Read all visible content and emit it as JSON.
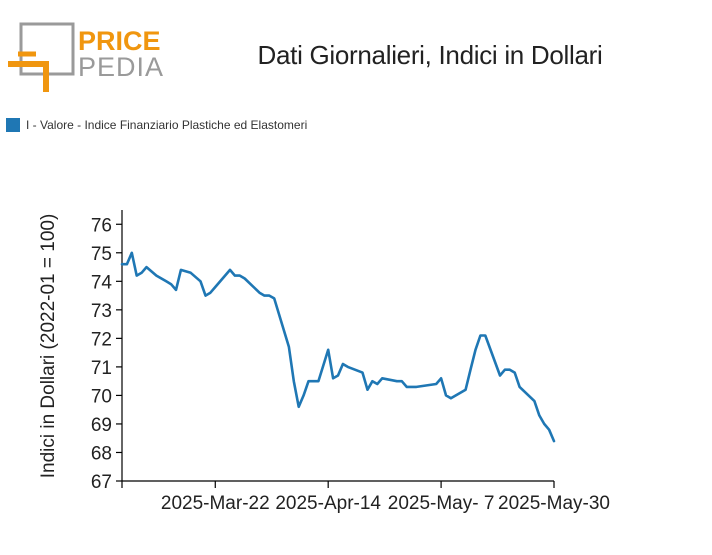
{
  "header": {
    "logo_top": "PRICE",
    "logo_bottom": "PEDIA",
    "title": "Dati Giornalieri, Indici in Dollari"
  },
  "colors": {
    "logo_orange": "#f0960f",
    "logo_gray": "#9a9a9a",
    "series": "#1f77b4"
  },
  "chart_data": {
    "type": "line",
    "ylabel": "Indici in Dollari (2022-01 = 100)",
    "xlabel": "",
    "ylim": [
      67,
      76.5
    ],
    "xlim": [
      "2025-03-03",
      "2025-05-30"
    ],
    "yticks": [
      67,
      68,
      69,
      70,
      71,
      72,
      73,
      74,
      75,
      76
    ],
    "xticks": [
      {
        "date": "2025-03-03",
        "label": ""
      },
      {
        "date": "2025-03-22",
        "label": "2025-Mar-22"
      },
      {
        "date": "2025-04-14",
        "label": "2025-Apr-14"
      },
      {
        "date": "2025-05-07",
        "label": "2025-May- 7"
      },
      {
        "date": "2025-05-30",
        "label": "2025-May-30"
      }
    ],
    "legend_position": "top-left",
    "series": [
      {
        "name": "I - Valore - Indice Finanziario Plastiche ed Elastomeri",
        "color": "#1f77b4",
        "x": [
          "2025-03-03",
          "2025-03-04",
          "2025-03-05",
          "2025-03-06",
          "2025-03-07",
          "2025-03-08",
          "2025-03-10",
          "2025-03-12",
          "2025-03-13",
          "2025-03-14",
          "2025-03-15",
          "2025-03-17",
          "2025-03-19",
          "2025-03-20",
          "2025-03-21",
          "2025-03-22",
          "2025-03-25",
          "2025-03-26",
          "2025-03-27",
          "2025-03-28",
          "2025-03-31",
          "2025-04-01",
          "2025-04-02",
          "2025-04-03",
          "2025-04-06",
          "2025-04-07",
          "2025-04-08",
          "2025-04-09",
          "2025-04-10",
          "2025-04-11",
          "2025-04-12",
          "2025-04-14",
          "2025-04-15",
          "2025-04-16",
          "2025-04-17",
          "2025-04-18",
          "2025-04-21",
          "2025-04-22",
          "2025-04-23",
          "2025-04-24",
          "2025-04-25",
          "2025-04-28",
          "2025-04-29",
          "2025-04-30",
          "2025-05-01",
          "2025-05-02",
          "2025-05-06",
          "2025-05-07",
          "2025-05-08",
          "2025-05-09",
          "2025-05-12",
          "2025-05-13",
          "2025-05-14",
          "2025-05-15",
          "2025-05-16",
          "2025-05-19",
          "2025-05-20",
          "2025-05-21",
          "2025-05-22",
          "2025-05-23",
          "2025-05-26",
          "2025-05-27",
          "2025-05-28",
          "2025-05-29",
          "2025-05-30"
        ],
        "values": [
          74.6,
          74.6,
          75.0,
          74.2,
          74.3,
          74.5,
          74.2,
          74.0,
          73.9,
          73.7,
          74.4,
          74.3,
          74.0,
          73.5,
          73.6,
          73.8,
          74.4,
          74.2,
          74.2,
          74.1,
          73.6,
          73.5,
          73.5,
          73.4,
          71.7,
          70.5,
          69.6,
          70.0,
          70.5,
          70.5,
          70.5,
          71.6,
          70.6,
          70.7,
          71.1,
          71.0,
          70.8,
          70.2,
          70.5,
          70.4,
          70.6,
          70.5,
          70.5,
          70.3,
          70.3,
          70.3,
          70.4,
          70.6,
          70.0,
          69.9,
          70.2,
          70.9,
          71.6,
          72.1,
          72.1,
          70.7,
          70.9,
          70.9,
          70.8,
          70.3,
          69.8,
          69.3,
          69.0,
          68.8,
          68.4
        ]
      }
    ]
  }
}
